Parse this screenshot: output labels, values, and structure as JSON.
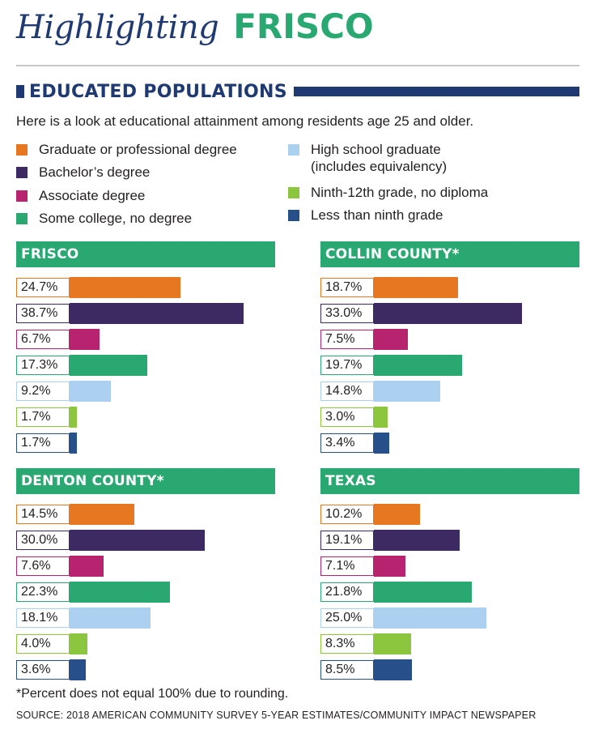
{
  "header": {
    "script_title": "Highlighting",
    "brand": "FRISCO"
  },
  "section_title": "EDUCATED POPULATIONS",
  "intro": "Here is a look at educational attainment among residents age 25 and older.",
  "legend": [
    {
      "label": "Graduate or professional degree",
      "color": "#e87722"
    },
    {
      "label": "Bachelor’s degree",
      "color": "#3d2a63"
    },
    {
      "label": "Associate degree",
      "color": "#b8236f"
    },
    {
      "label": "Some college, no degree",
      "color": "#2aa872"
    },
    {
      "label": "High school graduate\n(includes equivalency)",
      "color": "#acd0ef"
    },
    {
      "label": "Ninth-12th grade, no diploma",
      "color": "#8cc63f"
    },
    {
      "label": "Less than ninth grade",
      "color": "#27508a"
    }
  ],
  "chart_data": [
    {
      "type": "bar",
      "title": "FRISCO",
      "categories": [
        "Graduate or professional degree",
        "Bachelor’s degree",
        "Associate degree",
        "Some college, no degree",
        "High school graduate (includes equivalency)",
        "Ninth-12th grade, no diploma",
        "Less than ninth grade"
      ],
      "values": [
        24.7,
        38.7,
        6.7,
        17.3,
        9.2,
        1.7,
        1.7
      ],
      "labels": [
        "24.7%",
        "38.7%",
        "6.7%",
        "17.3%",
        "9.2%",
        "1.7%",
        "1.7%"
      ]
    },
    {
      "type": "bar",
      "title": "COLLIN COUNTY*",
      "categories": [
        "Graduate or professional degree",
        "Bachelor’s degree",
        "Associate degree",
        "Some college, no degree",
        "High school graduate (includes equivalency)",
        "Ninth-12th grade, no diploma",
        "Less than ninth grade"
      ],
      "values": [
        18.7,
        33.0,
        7.5,
        19.7,
        14.8,
        3.0,
        3.4
      ],
      "labels": [
        "18.7%",
        "33.0%",
        "7.5%",
        "19.7%",
        "14.8%",
        "3.0%",
        "3.4%"
      ]
    },
    {
      "type": "bar",
      "title": "DENTON COUNTY*",
      "categories": [
        "Graduate or professional degree",
        "Bachelor’s degree",
        "Associate degree",
        "Some college, no degree",
        "High school graduate (includes equivalency)",
        "Ninth-12th grade, no diploma",
        "Less than ninth grade"
      ],
      "values": [
        14.5,
        30.0,
        7.6,
        22.3,
        18.1,
        4.0,
        3.6
      ],
      "labels": [
        "14.5%",
        "30.0%",
        "7.6%",
        "22.3%",
        "18.1%",
        "4.0%",
        "3.6%"
      ]
    },
    {
      "type": "bar",
      "title": "TEXAS",
      "categories": [
        "Graduate or professional degree",
        "Bachelor’s degree",
        "Associate degree",
        "Some college, no degree",
        "High school graduate (includes equivalency)",
        "Ninth-12th grade, no diploma",
        "Less than ninth grade"
      ],
      "values": [
        10.2,
        19.1,
        7.1,
        21.8,
        25.0,
        8.3,
        8.5
      ],
      "labels": [
        "10.2%",
        "19.1%",
        "7.1%",
        "21.8%",
        "25.0%",
        "8.3%",
        "8.5%"
      ]
    }
  ],
  "footnote": "*Percent does not equal 100% due to rounding.",
  "source": "SOURCE: 2018 AMERICAN COMMUNITY SURVEY 5-YEAR ESTIMATES/COMMUNITY IMPACT NEWSPAPER"
}
